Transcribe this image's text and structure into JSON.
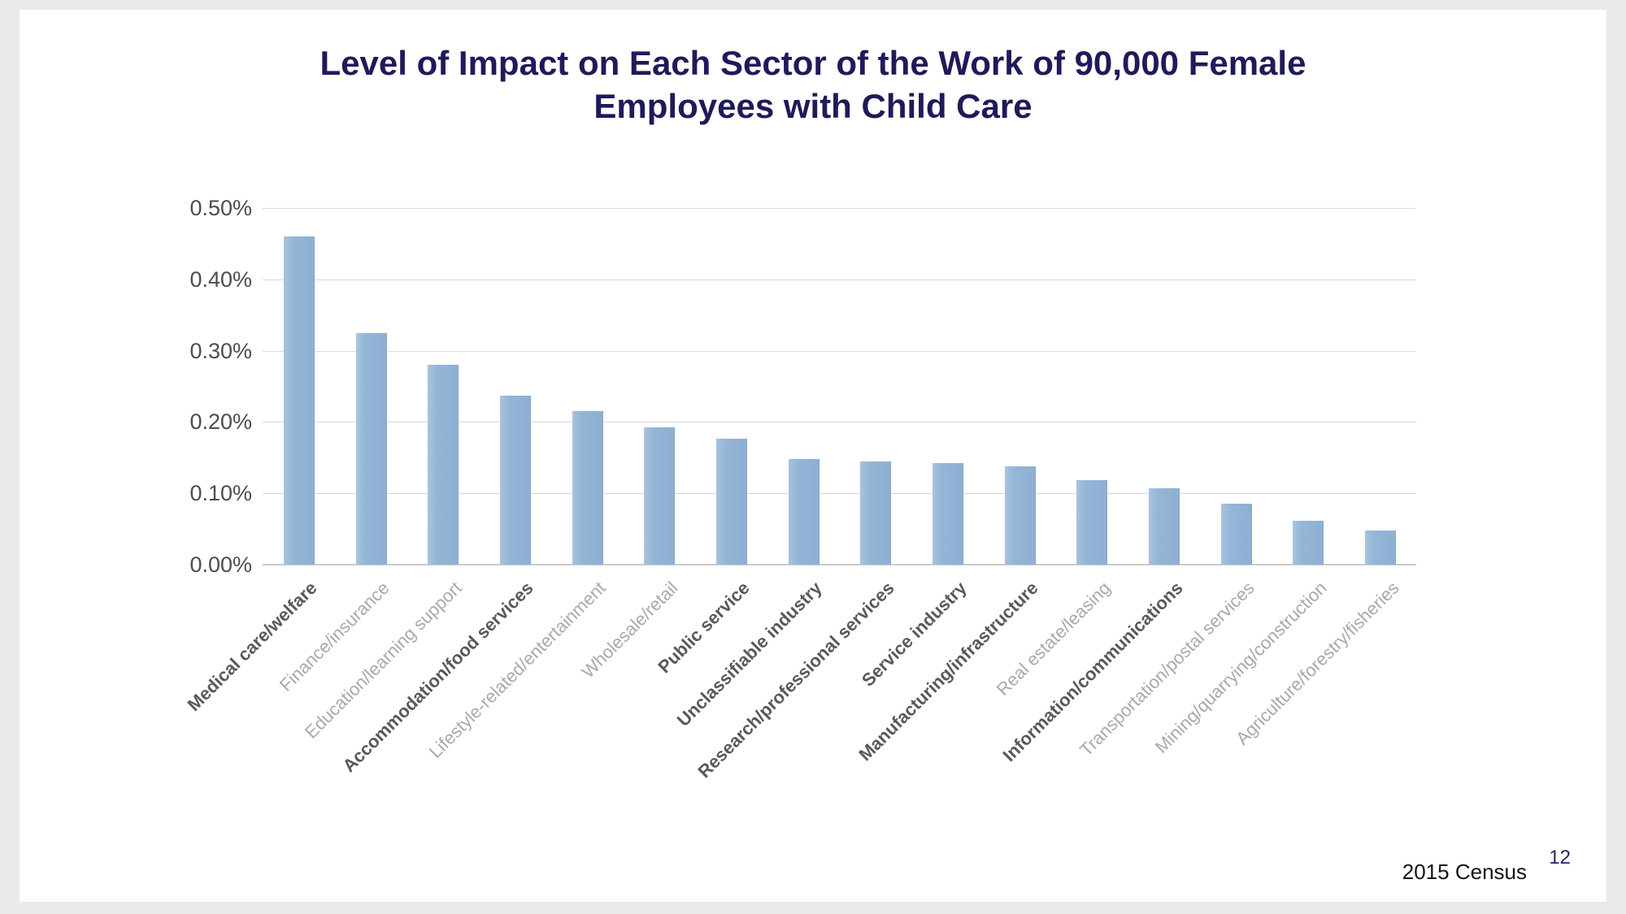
{
  "slide": {
    "title": "Level of Impact on Each Sector of the Work of 90,000 Female\nEmployees with Child Care"
  },
  "footer": {
    "source": "2015 Census",
    "page_number": "12"
  },
  "colors": {
    "title_text": "#1f1a5a",
    "bar_fill": "#92b4d5",
    "gridline": "#d9d9d9",
    "ytick_text": "#4d4d4d",
    "xlabel_emphasis": "#595959",
    "xlabel_muted": "#a9a9a9",
    "page_number": "#2a2263"
  },
  "chart_data": {
    "type": "bar",
    "title": "Level of Impact on Each Sector of the Work of 90,000 Female Employees with Child Care",
    "xlabel": "",
    "ylabel": "",
    "unit": "%",
    "ylim": [
      0,
      0.5
    ],
    "ytick_interval": 0.1,
    "ytick_labels": [
      "0.00%",
      "0.10%",
      "0.20%",
      "0.30%",
      "0.40%",
      "0.50%"
    ],
    "grid": true,
    "legend": "none",
    "categories": [
      "Medical care/welfare",
      "Finance/insurance",
      "Education/learning support",
      "Accommodation/food services",
      "Lifestyle-related/entertainment",
      "Wholesale/retail",
      "Public service",
      "Unclassifiable industry",
      "Research/professional services",
      "Service industry",
      "Manufacturing/infrastructure",
      "Real estate/leasing",
      "Information/communications",
      "Transportation/postal services",
      "Mining/quarrying/construction",
      "Agriculture/forestry/fisheries"
    ],
    "values": [
      0.46,
      0.325,
      0.28,
      0.237,
      0.215,
      0.192,
      0.176,
      0.148,
      0.145,
      0.142,
      0.138,
      0.118,
      0.107,
      0.085,
      0.062,
      0.048
    ],
    "emphasized_categories": [
      true,
      false,
      false,
      true,
      false,
      false,
      true,
      true,
      true,
      true,
      true,
      false,
      true,
      false,
      false,
      false
    ]
  }
}
